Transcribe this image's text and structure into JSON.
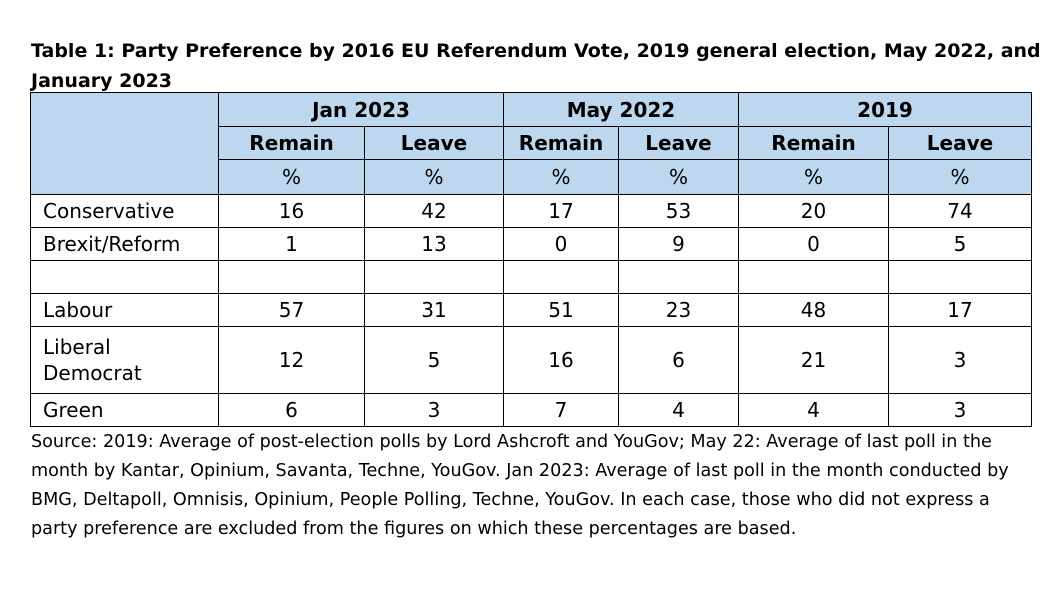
{
  "title": "Table 1: Party Preference by 2016 EU Referendum Vote, 2019 general election, May 2022, and January 2023",
  "table": {
    "periods": [
      "Jan 2023",
      "May 2022",
      "2019"
    ],
    "subheaders": [
      "Remain",
      "Leave",
      "Remain",
      "Leave",
      "Remain",
      "Leave"
    ],
    "unit": "%",
    "rows": [
      {
        "party": "Conservative",
        "values": [
          "16",
          "42",
          "17",
          "53",
          "20",
          "74"
        ]
      },
      {
        "party": "Brexit/Reform",
        "values": [
          "1",
          "13",
          "0",
          "9",
          "0",
          "5"
        ]
      },
      {
        "party": "Labour",
        "values": [
          "57",
          "31",
          "51",
          "23",
          "48",
          "17"
        ]
      },
      {
        "party_line1": "Liberal",
        "party_line2": "Democrat",
        "values": [
          "12",
          "5",
          "16",
          "6",
          "21",
          "3"
        ]
      },
      {
        "party": "Green",
        "values": [
          "6",
          "3",
          "7",
          "4",
          "4",
          "3"
        ]
      }
    ]
  },
  "source": "Source: 2019: Average of post-election polls by Lord Ashcroft and YouGov; May 22: Average of last poll in the month by Kantar, Opinium, Savanta, Techne, YouGov. Jan 2023: Average of last poll in the month conducted by BMG, Deltapoll, Omnisis, Opinium, People Polling, Techne, YouGov. In each case, those who did not express a party preference are excluded from the figures on which these percentages are based.",
  "colors": {
    "header_fill": "#bdd7ee"
  }
}
